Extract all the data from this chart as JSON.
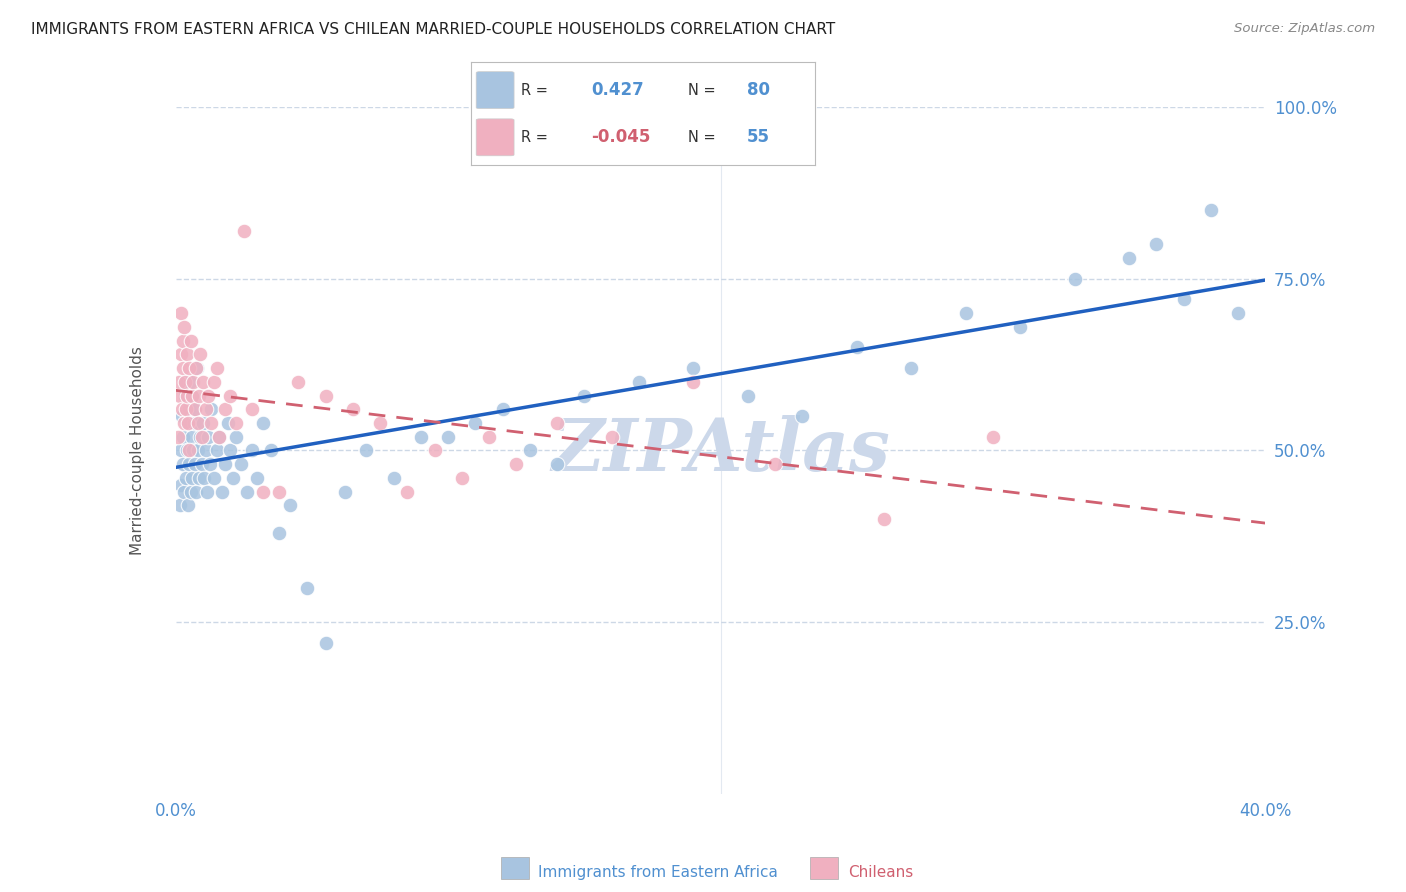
{
  "title": "IMMIGRANTS FROM EASTERN AFRICA VS CHILEAN MARRIED-COUPLE HOUSEHOLDS CORRELATION CHART",
  "source": "Source: ZipAtlas.com",
  "ylabel": "Married-couple Households",
  "legend_label1": "Immigrants from Eastern Africa",
  "legend_label2": "Chileans",
  "R1": 0.427,
  "N1": 80,
  "R2": -0.045,
  "N2": 55,
  "blue_color": "#a8c4e0",
  "pink_color": "#f0b0c0",
  "blue_line_color": "#2060c0",
  "pink_line_color": "#d06070",
  "title_color": "#222222",
  "axis_color": "#5090d0",
  "watermark_color": "#ccd8ea",
  "background_color": "#ffffff",
  "grid_color": "#c8d4e4",
  "xmin": 0.0,
  "xmax": 40.0,
  "ymin": 0.0,
  "ymax": 100.0,
  "blue_x": [
    0.15,
    0.18,
    0.2,
    0.22,
    0.25,
    0.28,
    0.3,
    0.32,
    0.35,
    0.38,
    0.4,
    0.42,
    0.45,
    0.48,
    0.5,
    0.52,
    0.55,
    0.58,
    0.6,
    0.62,
    0.65,
    0.68,
    0.7,
    0.72,
    0.75,
    0.78,
    0.8,
    0.85,
    0.9,
    0.95,
    1.0,
    1.05,
    1.1,
    1.15,
    1.2,
    1.25,
    1.3,
    1.4,
    1.5,
    1.6,
    1.7,
    1.8,
    1.9,
    2.0,
    2.1,
    2.2,
    2.4,
    2.6,
    2.8,
    3.0,
    3.2,
    3.5,
    3.8,
    4.2,
    4.8,
    5.5,
    6.2,
    7.0,
    8.0,
    9.0,
    10.0,
    11.0,
    12.0,
    13.0,
    14.0,
    15.0,
    17.0,
    19.0,
    21.0,
    23.0,
    25.0,
    27.0,
    29.0,
    31.0,
    33.0,
    35.0,
    36.0,
    37.0,
    38.0,
    39.0
  ],
  "blue_y": [
    42,
    45,
    50,
    55,
    48,
    52,
    60,
    44,
    58,
    46,
    50,
    54,
    42,
    48,
    56,
    60,
    44,
    52,
    46,
    58,
    50,
    54,
    48,
    56,
    44,
    62,
    50,
    46,
    52,
    48,
    54,
    46,
    50,
    44,
    52,
    48,
    56,
    46,
    50,
    52,
    44,
    48,
    54,
    50,
    46,
    52,
    48,
    44,
    50,
    46,
    54,
    50,
    38,
    42,
    30,
    22,
    44,
    50,
    46,
    52,
    52,
    54,
    56,
    50,
    48,
    58,
    60,
    62,
    58,
    55,
    65,
    62,
    70,
    68,
    75,
    78,
    80,
    72,
    85,
    70
  ],
  "pink_x": [
    0.1,
    0.12,
    0.15,
    0.18,
    0.2,
    0.22,
    0.25,
    0.28,
    0.3,
    0.32,
    0.35,
    0.38,
    0.4,
    0.42,
    0.45,
    0.48,
    0.5,
    0.55,
    0.6,
    0.65,
    0.7,
    0.75,
    0.8,
    0.85,
    0.9,
    0.95,
    1.0,
    1.1,
    1.2,
    1.3,
    1.4,
    1.5,
    1.6,
    1.8,
    2.0,
    2.2,
    2.5,
    2.8,
    3.2,
    3.8,
    4.5,
    5.5,
    6.5,
    7.5,
    8.5,
    9.5,
    10.5,
    11.5,
    12.5,
    14.0,
    16.0,
    19.0,
    22.0,
    26.0,
    30.0
  ],
  "pink_y": [
    52,
    60,
    58,
    64,
    70,
    56,
    66,
    62,
    54,
    68,
    60,
    56,
    64,
    58,
    54,
    62,
    50,
    66,
    58,
    60,
    56,
    62,
    54,
    58,
    64,
    52,
    60,
    56,
    58,
    54,
    60,
    62,
    52,
    56,
    58,
    54,
    82,
    56,
    44,
    44,
    60,
    58,
    56,
    54,
    44,
    50,
    46,
    52,
    48,
    54,
    52,
    60,
    48,
    40,
    52
  ]
}
